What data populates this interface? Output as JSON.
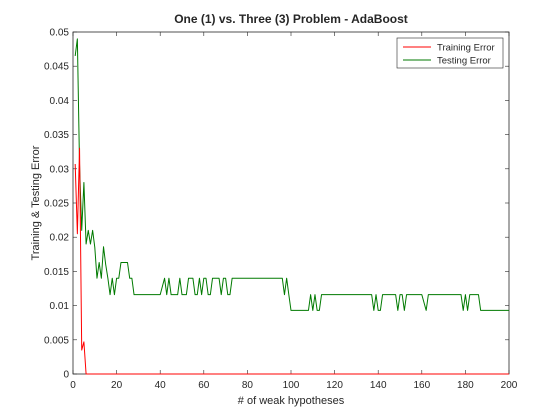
{
  "chart_data": {
    "type": "line",
    "title": "One (1) vs. Three (3) Problem - AdaBoost",
    "xlabel": "# of weak hypotheses",
    "ylabel": "Training & Testing Error",
    "xlim": [
      0,
      200
    ],
    "ylim": [
      0,
      0.05
    ],
    "xticks": [
      0,
      20,
      40,
      60,
      80,
      100,
      120,
      140,
      160,
      180,
      200
    ],
    "yticks": [
      0,
      0.005,
      0.01,
      0.015,
      0.02,
      0.025,
      0.03,
      0.035,
      0.04,
      0.045,
      0.05
    ],
    "xtick_labels": [
      "0",
      "20",
      "40",
      "60",
      "80",
      "100",
      "120",
      "140",
      "160",
      "180",
      "200"
    ],
    "ytick_labels": [
      "0",
      "0.005",
      "0.01",
      "0.015",
      "0.02",
      "0.025",
      "0.03",
      "0.035",
      "0.04",
      "0.045",
      "0.05"
    ],
    "grid": false,
    "legend_position": "top-right",
    "series": [
      {
        "name": "Training Error",
        "color": "#ff0000",
        "x": [
          1,
          2,
          3,
          4,
          5,
          6,
          7,
          10,
          20,
          50,
          100,
          150,
          200
        ],
        "y": [
          0.0307,
          0.0205,
          0.033,
          0.0035,
          0.0047,
          0.0,
          0.0,
          0.0,
          0.0,
          0.0,
          0.0,
          0.0,
          0.0
        ]
      },
      {
        "name": "Testing Error",
        "color": "#007a00",
        "x": [
          1,
          2,
          3,
          4,
          5,
          6,
          7,
          8,
          9,
          10,
          11,
          12,
          13,
          14,
          15,
          16,
          17,
          18,
          19,
          20,
          21,
          22,
          23,
          24,
          25,
          26,
          27,
          28,
          29,
          30,
          35,
          40,
          42,
          43,
          44,
          45,
          46,
          47,
          48,
          49,
          50,
          52,
          53,
          54,
          55,
          56,
          57,
          58,
          59,
          60,
          61,
          62,
          63,
          64,
          65,
          66,
          67,
          68,
          69,
          70,
          71,
          72,
          73,
          74,
          75,
          76,
          77,
          78,
          80,
          90,
          96,
          97,
          98,
          99,
          100,
          101,
          105,
          108,
          109,
          110,
          111,
          112,
          113,
          114,
          115,
          116,
          120,
          130,
          137,
          138,
          139,
          140,
          141,
          142,
          143,
          144,
          148,
          149,
          150,
          151,
          152,
          153,
          154,
          155,
          156,
          157,
          160,
          162,
          163,
          164,
          165,
          166,
          167,
          170,
          175,
          178,
          179,
          180,
          181,
          182,
          183,
          184,
          185,
          186,
          187,
          190,
          191,
          192,
          195,
          200
        ],
        "y": [
          0.0465,
          0.049,
          0.0305,
          0.021,
          0.028,
          0.019,
          0.021,
          0.019,
          0.021,
          0.0185,
          0.014,
          0.0163,
          0.014,
          0.0186,
          0.016,
          0.014,
          0.0116,
          0.014,
          0.0116,
          0.014,
          0.014,
          0.0163,
          0.0163,
          0.0163,
          0.0163,
          0.014,
          0.014,
          0.0116,
          0.0116,
          0.0116,
          0.0116,
          0.0116,
          0.014,
          0.0116,
          0.014,
          0.0116,
          0.0116,
          0.0116,
          0.0116,
          0.014,
          0.0116,
          0.0116,
          0.014,
          0.014,
          0.014,
          0.0116,
          0.0116,
          0.014,
          0.0116,
          0.014,
          0.014,
          0.0116,
          0.0116,
          0.014,
          0.014,
          0.014,
          0.014,
          0.0116,
          0.014,
          0.014,
          0.0116,
          0.0116,
          0.014,
          0.014,
          0.014,
          0.014,
          0.014,
          0.014,
          0.014,
          0.014,
          0.014,
          0.0116,
          0.014,
          0.0116,
          0.0093,
          0.0093,
          0.0093,
          0.0093,
          0.0116,
          0.0093,
          0.0116,
          0.0093,
          0.0093,
          0.0116,
          0.0116,
          0.0116,
          0.0116,
          0.0116,
          0.0116,
          0.0093,
          0.0116,
          0.0093,
          0.0093,
          0.0116,
          0.0116,
          0.0116,
          0.0116,
          0.0093,
          0.0116,
          0.0116,
          0.0093,
          0.0116,
          0.0116,
          0.0116,
          0.0116,
          0.0116,
          0.0116,
          0.0093,
          0.0116,
          0.0116,
          0.0116,
          0.0116,
          0.0116,
          0.0116,
          0.0116,
          0.0116,
          0.0093,
          0.0116,
          0.0093,
          0.0116,
          0.0116,
          0.0116,
          0.0116,
          0.0116,
          0.0093,
          0.0093,
          0.0093,
          0.0093,
          0.0093,
          0.0093
        ]
      }
    ]
  }
}
